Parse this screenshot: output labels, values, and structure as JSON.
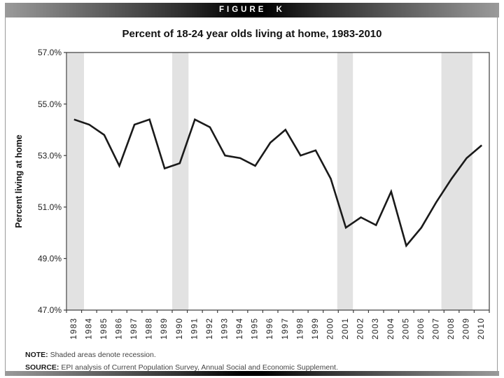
{
  "figure_label": "FIGURE K",
  "note": {
    "label": "NOTE:",
    "text": "Shaded areas denote recession."
  },
  "source": {
    "label": "SOURCE:",
    "text": "EPI analysis of Current Population Survey, Annual Social and Economic Supplement."
  },
  "chart_data": {
    "type": "line",
    "title": "Percent of 18-24 year olds living at home, 1983-2010",
    "xlabel": "",
    "ylabel": "Percent living at home",
    "x": [
      1983,
      1984,
      1985,
      1986,
      1987,
      1988,
      1989,
      1990,
      1991,
      1992,
      1993,
      1994,
      1995,
      1996,
      1997,
      1998,
      1999,
      2000,
      2001,
      2002,
      2003,
      2004,
      2005,
      2006,
      2007,
      2008,
      2009,
      2010
    ],
    "series": [
      {
        "name": "Percent of 18-24 year olds living at home",
        "values": [
          54.4,
          54.2,
          53.8,
          52.6,
          54.2,
          54.4,
          52.5,
          52.7,
          54.4,
          54.1,
          53.0,
          52.9,
          52.6,
          53.5,
          54.0,
          53.0,
          53.2,
          52.1,
          50.2,
          50.6,
          50.3,
          51.6,
          49.5,
          50.2,
          51.2,
          52.1,
          52.9,
          53.4
        ]
      }
    ],
    "ylim": [
      47,
      57
    ],
    "ytick_step": 2,
    "ytick_labels": [
      "57.0%",
      "55.0%",
      "53.0%",
      "51.0%",
      "49.0%",
      "47.0%"
    ],
    "grid": false,
    "legend": "none",
    "recession_bands": [
      [
        1982.55,
        1983.66
      ],
      [
        1989.5,
        1990.58
      ],
      [
        2000.43,
        2001.47
      ],
      [
        2007.33,
        2009.39
      ]
    ],
    "colors": {
      "line": "#1a1a1a",
      "band": "#e2e2e2",
      "axis": "#3c3c3c",
      "tick_text": "#1f1f1f"
    }
  }
}
